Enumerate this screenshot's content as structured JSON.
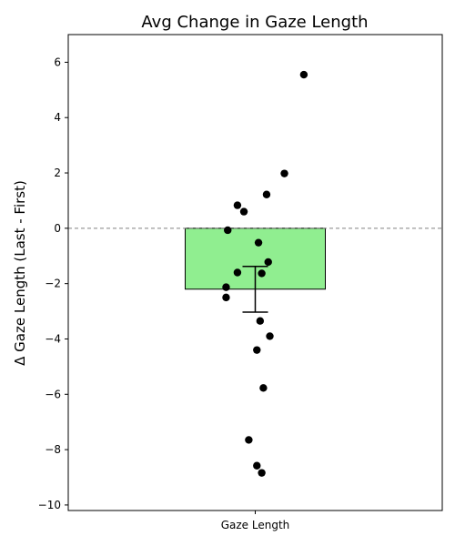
{
  "chart_data": {
    "type": "bar",
    "title": "Avg Change in Gaze Length",
    "xlabel": "",
    "ylabel": "Δ Gaze Length (Last - First)",
    "categories": [
      "Gaze Length"
    ],
    "values": [
      -2.2
    ],
    "error": {
      "lower": -3.03,
      "upper": -1.38
    },
    "ylim": [
      -10.2,
      7.0
    ],
    "yticks": [
      -10,
      -8,
      -6,
      -4,
      -2,
      0,
      2,
      4,
      6
    ],
    "grid": false,
    "reference_line": {
      "y": 0,
      "style": "dashed"
    },
    "points": [
      {
        "x": 0.3,
        "y": 5.55
      },
      {
        "x": 0.18,
        "y": 1.98
      },
      {
        "x": 0.07,
        "y": 1.22
      },
      {
        "x": -0.11,
        "y": 0.83
      },
      {
        "x": -0.07,
        "y": 0.6
      },
      {
        "x": -0.17,
        "y": -0.07
      },
      {
        "x": 0.02,
        "y": -0.52
      },
      {
        "x": 0.08,
        "y": -1.22
      },
      {
        "x": -0.11,
        "y": -1.6
      },
      {
        "x": 0.04,
        "y": -1.63
      },
      {
        "x": -0.18,
        "y": -2.13
      },
      {
        "x": -0.18,
        "y": -2.5
      },
      {
        "x": 0.03,
        "y": -3.35
      },
      {
        "x": 0.09,
        "y": -3.9
      },
      {
        "x": 0.01,
        "y": -4.4
      },
      {
        "x": 0.05,
        "y": -5.77
      },
      {
        "x": -0.04,
        "y": -7.65
      },
      {
        "x": 0.01,
        "y": -8.58
      },
      {
        "x": 0.04,
        "y": -8.84
      }
    ],
    "colors": {
      "bar": "#90ee90",
      "bar_edge": "#000000",
      "points": "#000000",
      "reference_line": "#808080",
      "error_bar": "#000000"
    }
  }
}
